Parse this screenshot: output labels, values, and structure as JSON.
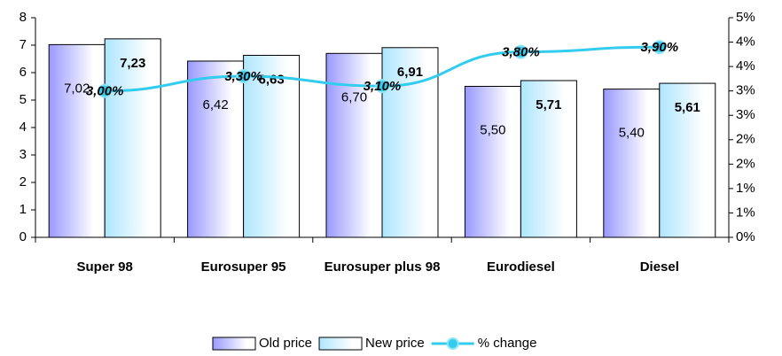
{
  "chart_data": {
    "type": "bar",
    "categories": [
      "Super 98",
      "Eurosuper 95",
      "Eurosuper plus 98",
      "Eurodiesel",
      "Diesel"
    ],
    "series": [
      {
        "name": "Old price",
        "color": "#9999ff",
        "values": [
          7.02,
          6.42,
          6.7,
          5.5,
          5.4
        ],
        "value_labels": [
          "7,02",
          "6,42",
          "6,70",
          "5,50",
          "5,40"
        ]
      },
      {
        "name": "New price",
        "color": "#aee6ff",
        "values": [
          7.23,
          6.63,
          6.91,
          5.71,
          5.61
        ],
        "value_labels": [
          "7,23",
          "6,63",
          "6,91",
          "5,71",
          "5,61"
        ]
      },
      {
        "name": "% change",
        "type": "line",
        "axis": "y2",
        "color": "#33ccee",
        "values": [
          3.0,
          3.3,
          3.1,
          3.8,
          3.9
        ],
        "value_labels": [
          "3,00%",
          "3,30%",
          "3,10%",
          "3,80%",
          "3,90%"
        ]
      }
    ],
    "ylim": [
      0,
      8
    ],
    "yticks": [
      0,
      1,
      2,
      3,
      4,
      5,
      6,
      7,
      8
    ],
    "y2lim": [
      0,
      4.5
    ],
    "y2ticks": [
      {
        "value": 0,
        "label": "0%"
      },
      {
        "value": 0.5,
        "label": "1%"
      },
      {
        "value": 1,
        "label": "1%"
      },
      {
        "value": 1.5,
        "label": "2%"
      },
      {
        "value": 2,
        "label": "2%"
      },
      {
        "value": 2.5,
        "label": "3%"
      },
      {
        "value": 3,
        "label": "3%"
      },
      {
        "value": 3.5,
        "label": "4%"
      },
      {
        "value": 4,
        "label": "4%"
      },
      {
        "value": 4.5,
        "label": "5%"
      }
    ],
    "legend": "bottom"
  }
}
